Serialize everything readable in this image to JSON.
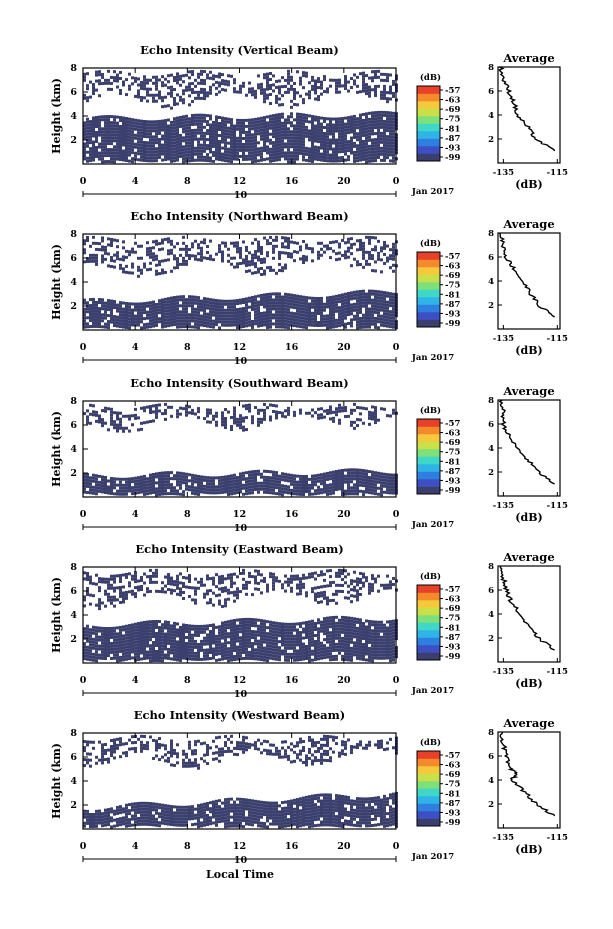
{
  "chart_data": {
    "type": "heatmap",
    "colors": {
      "echo": "#3b3f6e",
      "colorbar": [
        "#3b3f6e",
        "#3d4fc2",
        "#2f7fe0",
        "#2fb4e8",
        "#3fd7c8",
        "#7de07a",
        "#c9e04a",
        "#f5c93c",
        "#f58a2c",
        "#e8412a"
      ]
    },
    "colorbar_unit": "(dB)",
    "colorbar_ticks": [
      "-57",
      "-63",
      "-69",
      "-75",
      "-81",
      "-87",
      "-93",
      "-99"
    ],
    "x_ticks": [
      "0",
      "4",
      "8",
      "12",
      "16",
      "20",
      "0"
    ],
    "date_label": "10",
    "month_label": "Jan 2017",
    "xlabel": "Local Time",
    "ylabel": "Height (km)",
    "y_ticks": [
      "2",
      "4",
      "6",
      "8"
    ],
    "profile_title": "Average",
    "profile_x_ticks": [
      "-135",
      "-115"
    ],
    "profile_xlabel": "(dB)",
    "panels": [
      {
        "title": "Echo Intensity (Vertical Beam)",
        "echo_layers": [
          {
            "name": "lower",
            "time": [
              0,
              24
            ],
            "base_km": [
              0.3,
              0.3
            ],
            "top_km": [
              3.8,
              4.2
            ]
          },
          {
            "name": "upper",
            "time": [
              0,
              24
            ],
            "base_km": [
              5.3,
              5.5
            ],
            "top_km": [
              7.6,
              7.6
            ]
          }
        ],
        "profile": {
          "height_km": [
            8,
            7,
            6,
            5,
            4,
            3,
            2,
            1
          ],
          "db": [
            -136,
            -135,
            -133,
            -131,
            -130,
            -126,
            -123,
            -116
          ]
        }
      },
      {
        "title": "Echo Intensity (Northward Beam)",
        "echo_layers": [
          {
            "name": "lower",
            "time": [
              0,
              24
            ],
            "base_km": [
              0.3,
              0.3
            ],
            "top_km": [
              2.4,
              3.2
            ]
          },
          {
            "name": "upper",
            "time": [
              0,
              24
            ],
            "base_km": [
              5.0,
              5.5
            ],
            "top_km": [
              7.6,
              7.6
            ]
          }
        ],
        "profile": {
          "height_km": [
            8,
            7,
            6,
            5,
            4,
            3,
            2,
            1
          ],
          "db": [
            -136,
            -135,
            -134,
            -131,
            -128,
            -125,
            -122,
            -116
          ]
        }
      },
      {
        "title": "Echo Intensity (Southward Beam)",
        "echo_layers": [
          {
            "name": "lower",
            "time": [
              0,
              24
            ],
            "base_km": [
              0.3,
              0.3
            ],
            "top_km": [
              1.8,
              2.2
            ]
          },
          {
            "name": "upper",
            "time": [
              0,
              24
            ],
            "base_km": [
              6.0,
              6.5
            ],
            "top_km": [
              7.6,
              7.6
            ]
          }
        ],
        "profile": {
          "height_km": [
            8,
            7,
            6,
            5,
            4,
            3,
            2,
            1
          ],
          "db": [
            -136,
            -135,
            -135,
            -133,
            -130,
            -126,
            -122,
            -116
          ]
        }
      },
      {
        "title": "Echo Intensity (Eastward Beam)",
        "echo_layers": [
          {
            "name": "lower",
            "time": [
              0,
              24
            ],
            "base_km": [
              0.3,
              0.3
            ],
            "top_km": [
              3.2,
              3.8
            ]
          },
          {
            "name": "upper",
            "time": [
              0,
              24
            ],
            "base_km": [
              5.2,
              5.6
            ],
            "top_km": [
              7.6,
              7.6
            ]
          }
        ],
        "profile": {
          "height_km": [
            8,
            7,
            6,
            5,
            4,
            3,
            2,
            1
          ],
          "db": [
            -136,
            -135,
            -134,
            -132,
            -129,
            -126,
            -122,
            -116
          ]
        }
      },
      {
        "title": "Echo Intensity (Westward Beam)",
        "echo_layers": [
          {
            "name": "lower",
            "time": [
              0,
              24
            ],
            "base_km": [
              0.3,
              0.3
            ],
            "top_km": [
              1.8,
              3.0
            ]
          },
          {
            "name": "upper",
            "time": [
              0,
              24
            ],
            "base_km": [
              5.5,
              6.2
            ],
            "top_km": [
              7.6,
              7.6
            ]
          }
        ],
        "profile": {
          "height_km": [
            8,
            7,
            6,
            5,
            4.5,
            4,
            3,
            2,
            1
          ],
          "db": [
            -136,
            -135,
            -134,
            -133,
            -130,
            -132,
            -127,
            -123,
            -116
          ]
        }
      }
    ]
  }
}
